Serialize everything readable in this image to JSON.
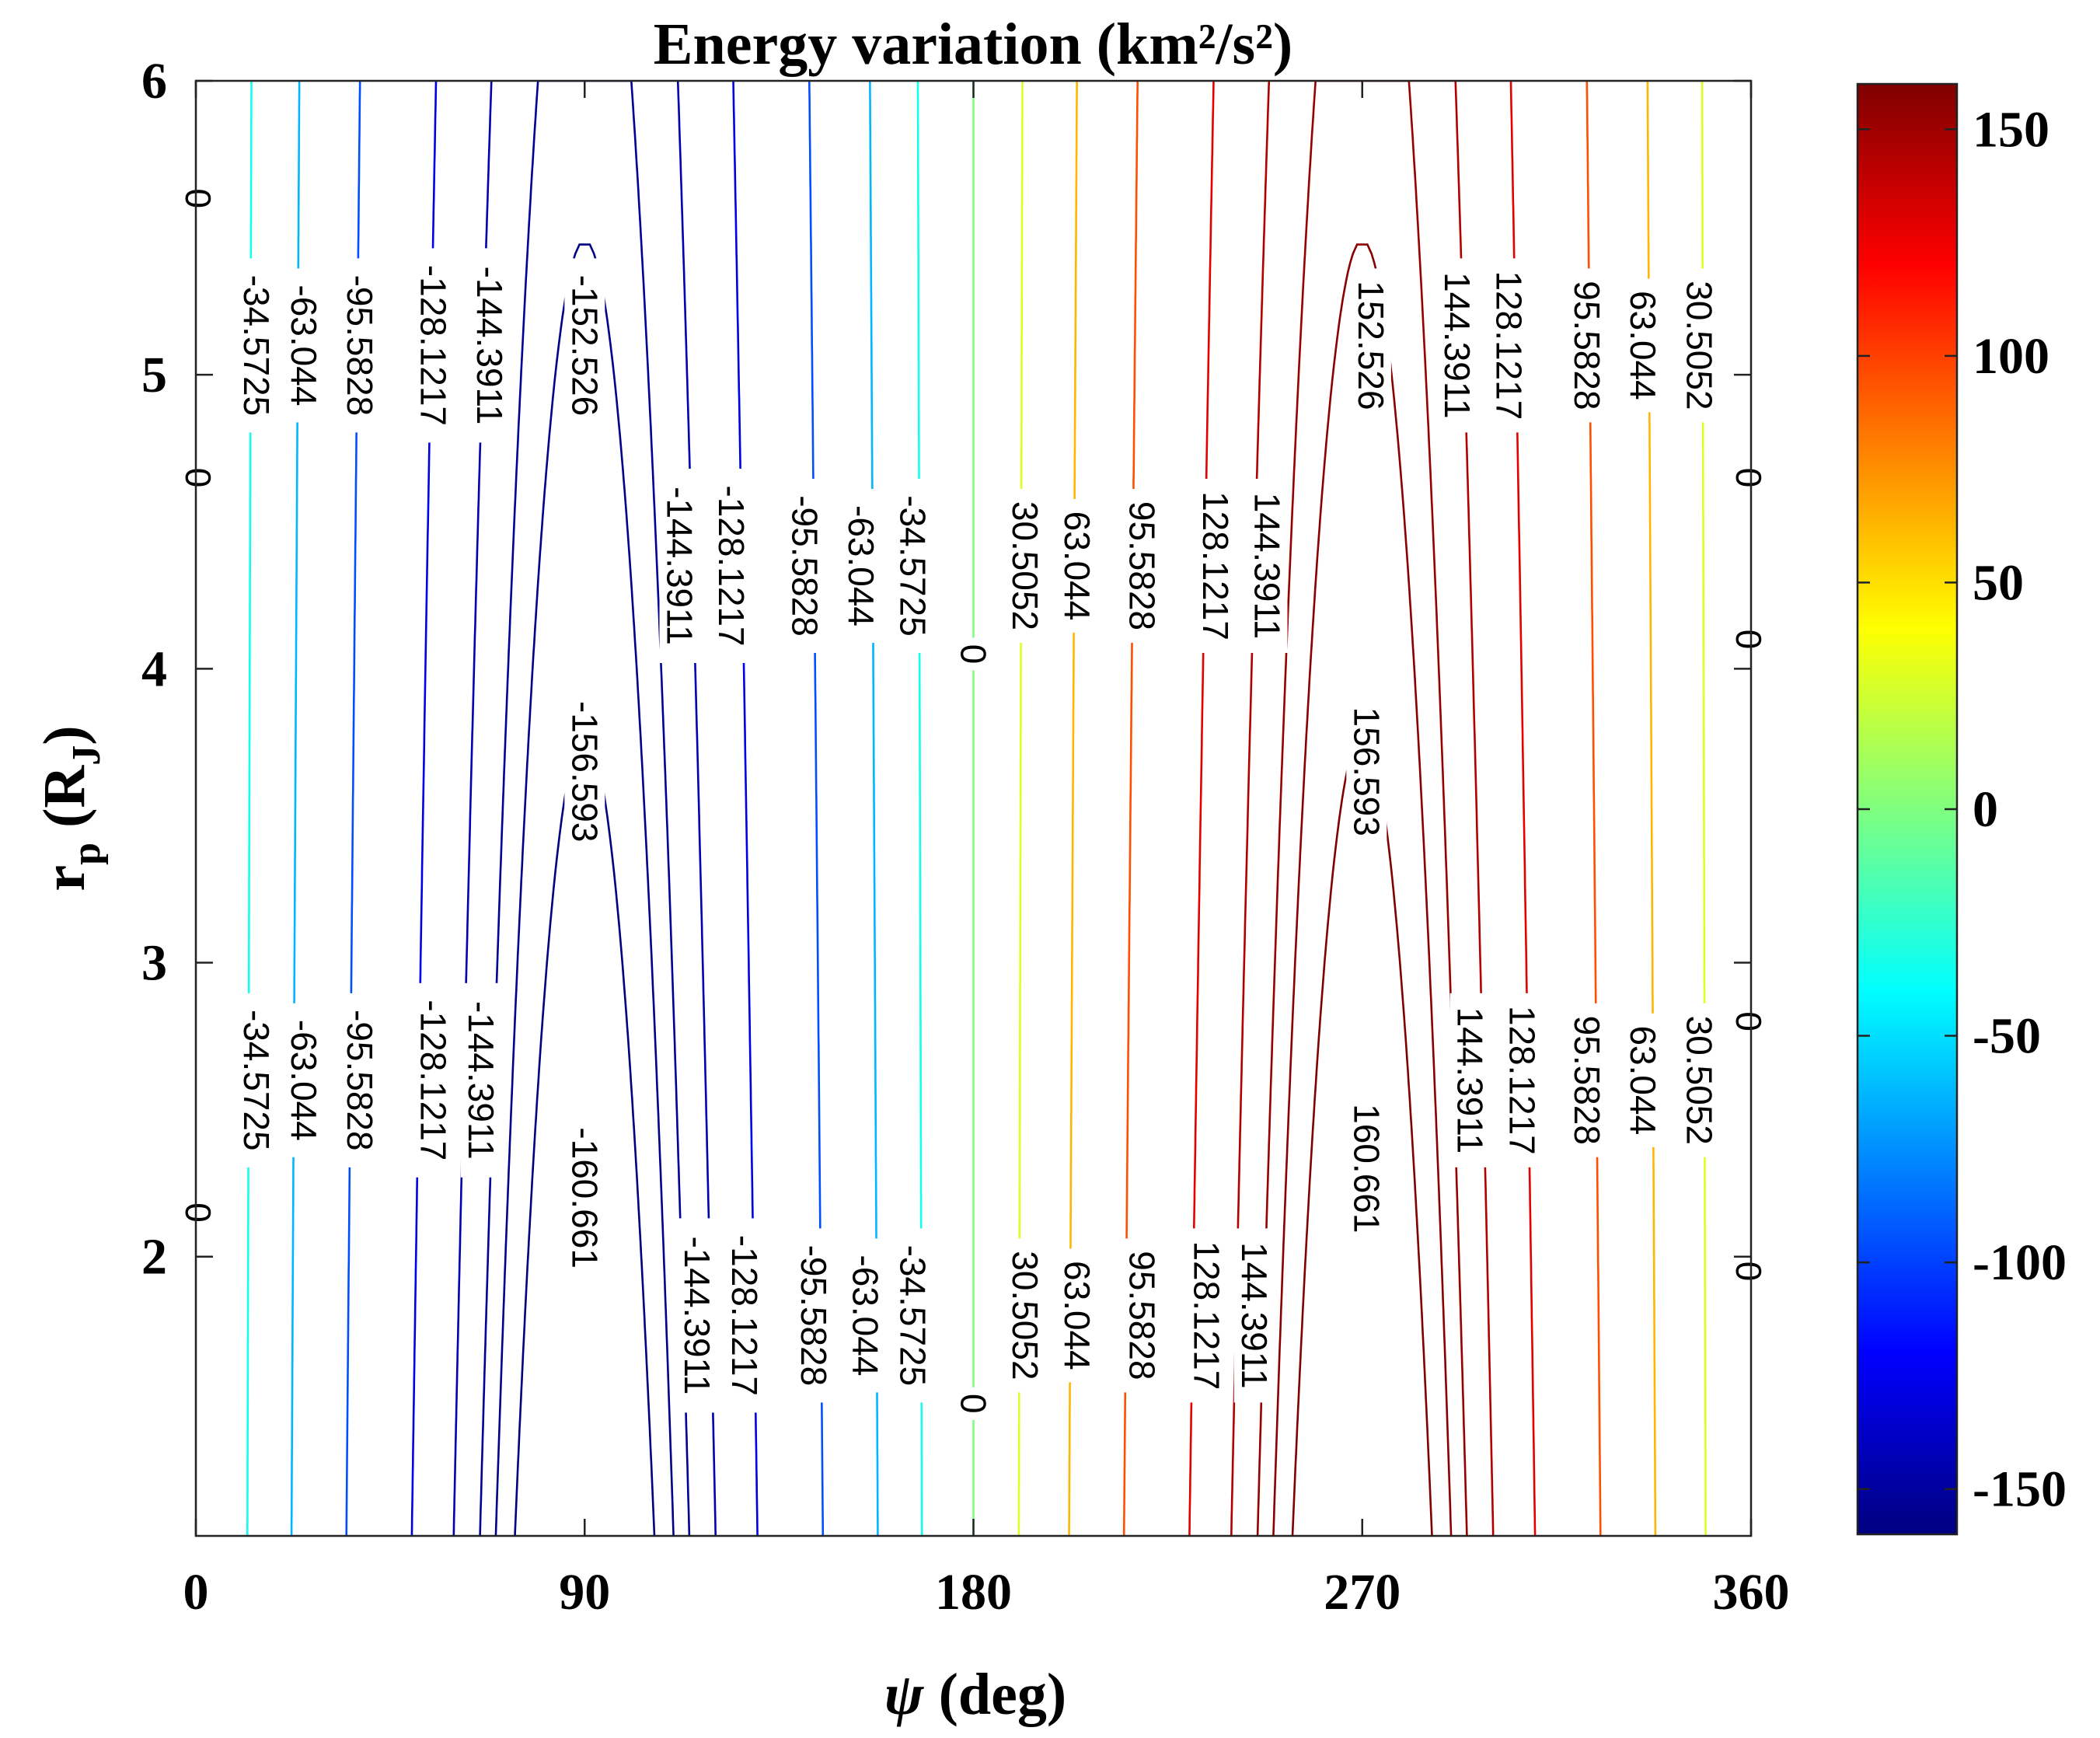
{
  "chart_data": {
    "type": "contour",
    "title": "Energy variation (km²/s²)",
    "xlabel": {
      "symbol": "ψ",
      "unit": " (deg)"
    },
    "ylabel": {
      "main": "r",
      "sub": "p",
      "unit_open": " (R",
      "unit_sub": "J",
      "unit_close": ")"
    },
    "x_ticks": [
      0,
      90,
      180,
      270,
      360
    ],
    "y_ticks": [
      2,
      3,
      4,
      5,
      6
    ],
    "xlim": [
      0,
      360
    ],
    "ylim": [
      1.05,
      6
    ],
    "colorbar": {
      "colormap": "jet",
      "range": [
        -160,
        160
      ],
      "ticks": [
        150,
        100,
        50,
        0,
        -50,
        -100,
        -150
      ]
    },
    "level_values": [
      -160.661,
      -156.593,
      -152.526,
      -144.3911,
      -128.1217,
      -95.5828,
      -63.044,
      -34.5725,
      0,
      30.5052,
      63.044,
      95.5828,
      128.1217,
      144.3911,
      152.526,
      156.593,
      160.661
    ],
    "contour_labels": [
      {
        "text": "0",
        "x": 0.5,
        "y": 5.6
      },
      {
        "text": "-34.5725",
        "x": 14,
        "y": 5.1
      },
      {
        "text": "-63.044",
        "x": 25,
        "y": 5.1
      },
      {
        "text": "-95.5828",
        "x": 38,
        "y": 5.1
      },
      {
        "text": "-128.1217",
        "x": 55,
        "y": 5.1
      },
      {
        "text": "-144.3911",
        "x": 68,
        "y": 5.1
      },
      {
        "text": "-152.526",
        "x": 90,
        "y": 5.1
      },
      {
        "text": "0",
        "x": 0.5,
        "y": 4.65
      },
      {
        "text": "-144.3911",
        "x": 112,
        "y": 4.35
      },
      {
        "text": "-128.1217",
        "x": 124,
        "y": 4.35
      },
      {
        "text": "-95.5828",
        "x": 141,
        "y": 4.35
      },
      {
        "text": "-63.044",
        "x": 154,
        "y": 4.35
      },
      {
        "text": "-34.5725",
        "x": 166,
        "y": 4.35
      },
      {
        "text": "0",
        "x": 180,
        "y": 4.05
      },
      {
        "text": "30.5052",
        "x": 192,
        "y": 4.35
      },
      {
        "text": "63.044",
        "x": 204,
        "y": 4.35
      },
      {
        "text": "95.5828",
        "x": 219,
        "y": 4.35
      },
      {
        "text": "128.1217",
        "x": 236,
        "y": 4.35
      },
      {
        "text": "144.3911",
        "x": 248,
        "y": 4.35
      },
      {
        "text": "152.526",
        "x": 272,
        "y": 5.1
      },
      {
        "text": "144.3911",
        "x": 292,
        "y": 5.1
      },
      {
        "text": "128.1217",
        "x": 304,
        "y": 5.1
      },
      {
        "text": "95.5828",
        "x": 322,
        "y": 5.1
      },
      {
        "text": "63.044",
        "x": 335,
        "y": 5.1
      },
      {
        "text": "30.5052",
        "x": 348,
        "y": 5.1
      },
      {
        "text": "0",
        "x": 359.5,
        "y": 4.65
      },
      {
        "text": "0",
        "x": 359.5,
        "y": 4.1
      },
      {
        "text": "-156.593",
        "x": 90,
        "y": 3.65
      },
      {
        "text": "156.593",
        "x": 271,
        "y": 3.65
      },
      {
        "text": "-34.5725",
        "x": 14,
        "y": 2.6
      },
      {
        "text": "-63.044",
        "x": 25,
        "y": 2.6
      },
      {
        "text": "-95.5828",
        "x": 38,
        "y": 2.6
      },
      {
        "text": "-128.1217",
        "x": 55,
        "y": 2.6
      },
      {
        "text": "-144.3911",
        "x": 66,
        "y": 2.6
      },
      {
        "text": "144.3911",
        "x": 295,
        "y": 2.6
      },
      {
        "text": "128.1217",
        "x": 307,
        "y": 2.6
      },
      {
        "text": "95.5828",
        "x": 322,
        "y": 2.6
      },
      {
        "text": "63.044",
        "x": 335,
        "y": 2.6
      },
      {
        "text": "30.5052",
        "x": 348,
        "y": 2.6
      },
      {
        "text": "0",
        "x": 359.5,
        "y": 2.8
      },
      {
        "text": "-160.661",
        "x": 90,
        "y": 2.2
      },
      {
        "text": "160.661",
        "x": 271,
        "y": 2.3
      },
      {
        "text": "0",
        "x": 0.5,
        "y": 2.15
      },
      {
        "text": "0",
        "x": 359.5,
        "y": 1.95
      },
      {
        "text": "-144.3911",
        "x": 116,
        "y": 1.8
      },
      {
        "text": "-128.1217",
        "x": 127,
        "y": 1.8
      },
      {
        "text": "-95.5828",
        "x": 143,
        "y": 1.8
      },
      {
        "text": "-63.044",
        "x": 155,
        "y": 1.8
      },
      {
        "text": "-34.5725",
        "x": 166,
        "y": 1.8
      },
      {
        "text": "0",
        "x": 180,
        "y": 1.5
      },
      {
        "text": "30.5052",
        "x": 192,
        "y": 1.8
      },
      {
        "text": "63.044",
        "x": 204,
        "y": 1.8
      },
      {
        "text": "95.5828",
        "x": 219,
        "y": 1.8
      },
      {
        "text": "128.1217",
        "x": 234,
        "y": 1.8
      },
      {
        "text": "144.3911",
        "x": 245,
        "y": 1.8
      }
    ]
  }
}
